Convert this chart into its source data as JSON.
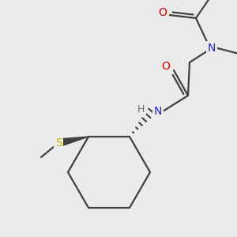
{
  "bg_color": "#ebebeb",
  "atom_colors": {
    "O": "#cc0000",
    "N": "#2020cc",
    "S": "#c8b400",
    "C": "#404040",
    "H": "#607080"
  },
  "bond_color": "#404040",
  "lw": 1.6
}
